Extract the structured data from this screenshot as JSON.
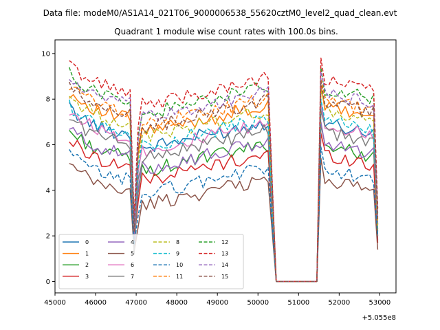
{
  "chart_data": {
    "type": "line",
    "suptitle": "Data file: modeM0/AS1A14_021T06_9000006538_55620cztM0_level2_quad_clean.evt",
    "title": "Quadrant 1 module wise count rates with 100.0s bins.",
    "xlabel": "",
    "ylabel": "",
    "x_offset_text": "+5.055e8",
    "xlim": [
      45000,
      53400
    ],
    "ylim": [
      -0.5,
      10.6
    ],
    "xticks": [
      "45000",
      "46000",
      "47000",
      "48000",
      "49000",
      "50000",
      "51000",
      "52000",
      "53000"
    ],
    "yticks": [
      "0",
      "2",
      "4",
      "6",
      "8",
      "10"
    ],
    "legend_loc": "lower-left",
    "legend_columns": 4,
    "segments": {
      "first": {
        "start": 45350,
        "end": 46850,
        "step": 100
      },
      "second": {
        "start": 47050,
        "end": 50250,
        "step": 100
      },
      "third": {
        "start": 51550,
        "end": 52850,
        "step": 100
      },
      "dip_x": 46950,
      "gap_x": [
        50450,
        51450
      ],
      "final_x": 52950
    },
    "series": [
      {
        "name": "0",
        "color": "#1f77b4",
        "dashed": false,
        "base": 6.5,
        "dip": 1.5,
        "final": 1.8
      },
      {
        "name": "1",
        "color": "#ff7f0e",
        "dashed": false,
        "base": 7.2,
        "dip": 2.0,
        "final": 2.5
      },
      {
        "name": "2",
        "color": "#2ca02c",
        "dashed": false,
        "base": 5.5,
        "dip": 1.8,
        "final": 2.2
      },
      {
        "name": "3",
        "color": "#d62728",
        "dashed": false,
        "base": 5.1,
        "dip": 1.8,
        "final": 1.7
      },
      {
        "name": "4",
        "color": "#9467bd",
        "dashed": false,
        "base": 5.6,
        "dip": 2.0,
        "final": 2.5
      },
      {
        "name": "5",
        "color": "#8c564b",
        "dashed": false,
        "base": 4.0,
        "dip": 1.3,
        "final": 1.4
      },
      {
        "name": "6",
        "color": "#e377c2",
        "dashed": false,
        "base": 6.4,
        "dip": 2.2,
        "final": 2.8
      },
      {
        "name": "7",
        "color": "#7f7f7f",
        "dashed": false,
        "base": 6.1,
        "dip": 1.2,
        "final": 2.0
      },
      {
        "name": "8",
        "color": "#bcbd22",
        "dashed": true,
        "base": 7.0,
        "dip": 2.6,
        "final": 2.3
      },
      {
        "name": "9",
        "color": "#17becf",
        "dashed": true,
        "base": 6.6,
        "dip": 2.4,
        "final": 3.0
      },
      {
        "name": "10",
        "color": "#1f77b4",
        "dashed": true,
        "base": 4.5,
        "dip": 1.6,
        "final": 2.0
      },
      {
        "name": "11",
        "color": "#ff7f0e",
        "dashed": true,
        "base": 7.5,
        "dip": 2.8,
        "final": 3.0
      },
      {
        "name": "12",
        "color": "#2ca02c",
        "dashed": true,
        "base": 8.0,
        "dip": 2.6,
        "final": 3.2
      },
      {
        "name": "13",
        "color": "#d62728",
        "dashed": true,
        "base": 8.4,
        "dip": 2.8,
        "final": 3.2
      },
      {
        "name": "14",
        "color": "#9467bd",
        "dashed": true,
        "base": 7.8,
        "dip": 2.4,
        "final": 2.8
      },
      {
        "name": "15",
        "color": "#8c564b",
        "dashed": true,
        "base": 7.4,
        "dip": 2.2,
        "final": 2.7
      }
    ]
  }
}
